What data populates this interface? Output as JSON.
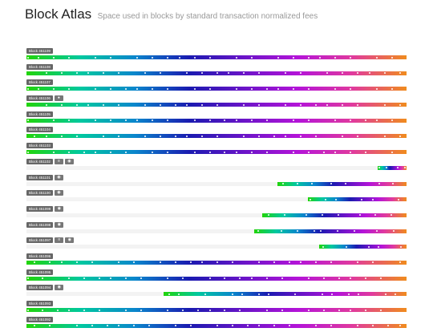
{
  "header": {
    "title": "Block Atlas",
    "subtitle": "Space used in blocks by standard transaction normalized fees"
  },
  "colors": {
    "gradient": [
      "#22d40a",
      "#00c8a0",
      "#0a86cc",
      "#1a1ab0",
      "#6a14c8",
      "#b414d8",
      "#e03a9e",
      "#f08c1e"
    ],
    "label_bg": "#666666",
    "track_bg": "#f3f3f3"
  },
  "blocks": [
    {
      "label": "Block 451109",
      "icon": "",
      "start": 0.0,
      "end": 1.0
    },
    {
      "label": "Block 451108",
      "icon": "",
      "start": 0.0,
      "end": 1.0
    },
    {
      "label": "Block 451107",
      "icon": "",
      "start": 0.0,
      "end": 1.0
    },
    {
      "label": "Block 451106",
      "icon": "person-icon",
      "start": 0.0,
      "end": 1.0
    },
    {
      "label": "Block 451105",
      "icon": "",
      "start": 0.0,
      "end": 1.0
    },
    {
      "label": "Block 451104",
      "icon": "",
      "start": 0.0,
      "end": 1.0
    },
    {
      "label": "Block 451103",
      "icon": "",
      "start": 0.0,
      "end": 1.0
    },
    {
      "label": "Block 451102",
      "icon": "block-icons",
      "start": 0.925,
      "end": 1.0
    },
    {
      "label": "Block 451101",
      "icon": "eye-icon",
      "start": 0.66,
      "end": 1.0
    },
    {
      "label": "Block 451100",
      "icon": "eye-icon",
      "start": 0.74,
      "end": 1.0
    },
    {
      "label": "Block 451099",
      "icon": "eye-icon",
      "start": 0.62,
      "end": 1.0
    },
    {
      "label": "Block 451098",
      "icon": "eye-icon",
      "start": 0.6,
      "end": 1.0
    },
    {
      "label": "Block 451097",
      "icon": "block-icons",
      "start": 0.77,
      "end": 1.0
    },
    {
      "label": "Block 451096",
      "icon": "",
      "start": 0.0,
      "end": 1.0
    },
    {
      "label": "Block 451095",
      "icon": "",
      "start": 0.0,
      "end": 1.0
    },
    {
      "label": "Block 451094",
      "icon": "eye-icon",
      "start": 0.36,
      "end": 1.0
    },
    {
      "label": "Block 451093",
      "icon": "",
      "start": 0.0,
      "end": 1.0
    },
    {
      "label": "Block 451092",
      "icon": "",
      "start": 0.0,
      "end": 1.0
    }
  ]
}
